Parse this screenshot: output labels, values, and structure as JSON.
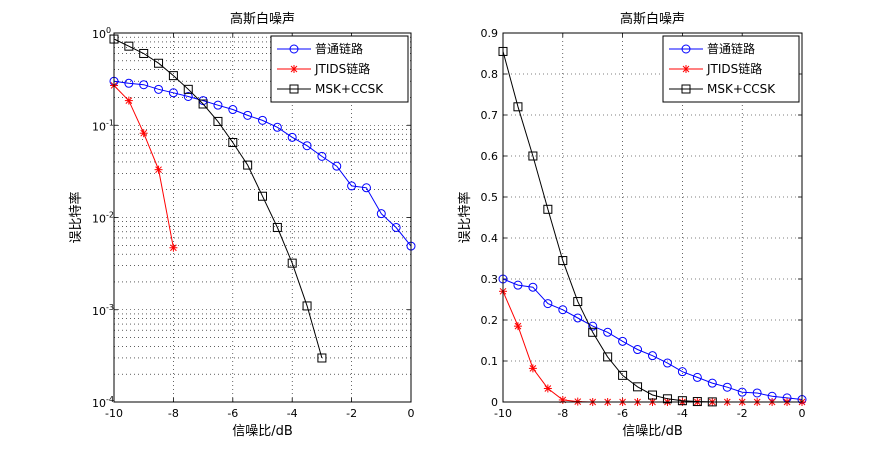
{
  "chart_data": [
    {
      "type": "line",
      "title": "高斯白噪声",
      "xlabel": "信噪比/dB",
      "ylabel": "误比特率",
      "yscale": "log",
      "xlim": [
        -10,
        0
      ],
      "ylim": [
        0.0001,
        1
      ],
      "xticks": [
        -10,
        -8,
        -6,
        -4,
        -2,
        0
      ],
      "xtick_labels": [
        "-10",
        "-8",
        "-6",
        "-4",
        "-2",
        "0"
      ],
      "yticks": [
        0.0001,
        0.001,
        0.01,
        0.1,
        1
      ],
      "ytick_labels": [
        {
          "base": "10",
          "exp": "-4"
        },
        {
          "base": "10",
          "exp": "-3"
        },
        {
          "base": "10",
          "exp": "-2"
        },
        {
          "base": "10",
          "exp": "-1"
        },
        {
          "base": "10",
          "exp": "0"
        }
      ],
      "grid": true,
      "legend_position": "top-right",
      "series": [
        {
          "name": "普通链路",
          "color": "#0000ff",
          "marker": "circle",
          "x": [
            -10,
            -9.5,
            -9,
            -8.5,
            -8,
            -7.5,
            -7,
            -6.5,
            -6,
            -5.5,
            -5,
            -4.5,
            -4,
            -3.5,
            -3,
            -2.5,
            -2,
            -1.5,
            -1,
            -0.5,
            0
          ],
          "y": [
            0.3,
            0.285,
            0.275,
            0.245,
            0.225,
            0.205,
            0.185,
            0.165,
            0.148,
            0.128,
            0.113,
            0.095,
            0.074,
            0.06,
            0.046,
            0.036,
            0.022,
            0.021,
            0.011,
            0.0078,
            0.0049
          ]
        },
        {
          "name": "JTIDS链路",
          "color": "#ff0000",
          "marker": "star",
          "x": [
            -10,
            -9.5,
            -9,
            -8.5,
            -8
          ],
          "y": [
            0.27,
            0.185,
            0.082,
            0.033,
            0.0047
          ]
        },
        {
          "name": "MSK+CCSK",
          "color": "#000000",
          "marker": "square",
          "x": [
            -10,
            -9.5,
            -9,
            -8.5,
            -8,
            -7.5,
            -7,
            -6.5,
            -6,
            -5.5,
            -5,
            -4.5,
            -4,
            -3.5,
            -3
          ],
          "y": [
            0.86,
            0.72,
            0.6,
            0.47,
            0.345,
            0.245,
            0.17,
            0.11,
            0.065,
            0.037,
            0.017,
            0.0078,
            0.0032,
            0.0011,
            0.0003
          ]
        }
      ]
    },
    {
      "type": "line",
      "title": "高斯白噪声",
      "xlabel": "信噪比/dB",
      "ylabel": "误比特率",
      "yscale": "linear",
      "xlim": [
        -10,
        0
      ],
      "ylim": [
        0,
        0.9
      ],
      "xticks": [
        -10,
        -8,
        -6,
        -4,
        -2,
        0
      ],
      "xtick_labels": [
        "-10",
        "-8",
        "-6",
        "-4",
        "-2",
        "0"
      ],
      "yticks": [
        0,
        0.1,
        0.2,
        0.3,
        0.4,
        0.5,
        0.6,
        0.7,
        0.8,
        0.9
      ],
      "ytick_labels": [
        "0",
        "0.1",
        "0.2",
        "0.3",
        "0.4",
        "0.5",
        "0.6",
        "0.7",
        "0.8",
        "0.9"
      ],
      "grid": true,
      "legend_position": "top-right",
      "series": [
        {
          "name": "普通链路",
          "color": "#0000ff",
          "marker": "circle",
          "x": [
            -10,
            -9.5,
            -9,
            -8.5,
            -8,
            -7.5,
            -7,
            -6.5,
            -6,
            -5.5,
            -5,
            -4.5,
            -4,
            -3.5,
            -3,
            -2.5,
            -2,
            -1.5,
            -1,
            -0.5,
            0
          ],
          "y": [
            0.3,
            0.285,
            0.28,
            0.24,
            0.225,
            0.205,
            0.185,
            0.17,
            0.148,
            0.128,
            0.113,
            0.095,
            0.074,
            0.06,
            0.046,
            0.036,
            0.024,
            0.022,
            0.014,
            0.01,
            0.006
          ]
        },
        {
          "name": "JTIDS链路",
          "color": "#ff0000",
          "marker": "star",
          "x": [
            -10,
            -9.5,
            -9,
            -8.5,
            -8,
            -7.5,
            -7,
            -6.5,
            -6,
            -5.5,
            -5,
            -4.5,
            -4,
            -3.5,
            -3,
            -2.5,
            -2,
            -1.5,
            -1,
            -0.5,
            0
          ],
          "y": [
            0.27,
            0.185,
            0.082,
            0.033,
            0.005,
            0.001,
            0,
            0,
            0,
            0,
            0,
            0,
            0,
            0,
            0,
            0,
            0,
            0,
            0,
            0,
            0
          ]
        },
        {
          "name": "MSK+CCSK",
          "color": "#000000",
          "marker": "square",
          "x": [
            -10,
            -9.5,
            -9,
            -8.5,
            -8,
            -7.5,
            -7,
            -6.5,
            -6,
            -5.5,
            -5,
            -4.5,
            -4,
            -3.5,
            -3
          ],
          "y": [
            0.855,
            0.72,
            0.6,
            0.47,
            0.345,
            0.245,
            0.17,
            0.11,
            0.065,
            0.037,
            0.017,
            0.0078,
            0.0032,
            0.0011,
            0.0003
          ]
        }
      ]
    }
  ]
}
